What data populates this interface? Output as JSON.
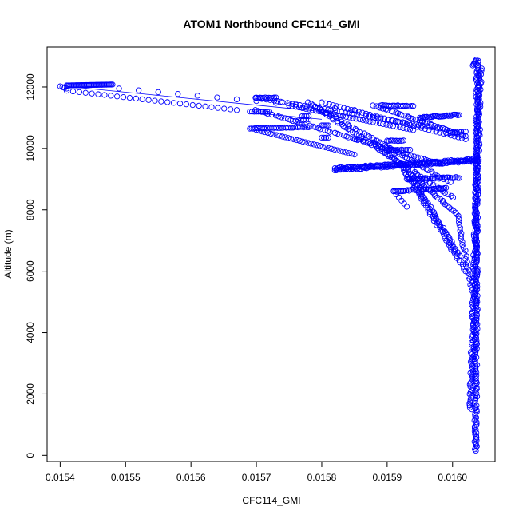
{
  "chart_data": {
    "type": "scatter",
    "title": "ATOM1 Northbound CFC114_GMI",
    "xlabel": "CFC114_GMI",
    "ylabel": "Altitude (m)",
    "xlim": [
      0.01538,
      0.016065
    ],
    "ylim": [
      -200,
      13300
    ],
    "grid": false,
    "legend": "none",
    "marker": "open-circle",
    "color": "#0000ff",
    "x_ticks": [
      {
        "value": 0.0154,
        "label": "0.0154"
      },
      {
        "value": 0.0155,
        "label": "0.0155"
      },
      {
        "value": 0.0156,
        "label": "0.0156"
      },
      {
        "value": 0.0157,
        "label": "0.0157"
      },
      {
        "value": 0.0158,
        "label": "0.0158"
      },
      {
        "value": 0.0159,
        "label": "0.0159"
      },
      {
        "value": 0.016,
        "label": "0.0160"
      }
    ],
    "y_ticks": [
      {
        "value": 0,
        "label": "0"
      },
      {
        "value": 2000,
        "label": "2000"
      },
      {
        "value": 4000,
        "label": "4000"
      },
      {
        "value": 6000,
        "label": "6000"
      },
      {
        "value": 8000,
        "label": "8000"
      },
      {
        "value": 10000,
        "label": "10000"
      },
      {
        "value": 12000,
        "label": "12000"
      }
    ],
    "segments": [
      {
        "x0": 0.016035,
        "y0": 150,
        "x1": 0.016038,
        "y1": 12850,
        "n": 260,
        "jitter": 2.2e-06,
        "jitter_y": 0
      },
      {
        "x0": 0.016028,
        "y0": 1500,
        "x1": 0.016042,
        "y1": 12600,
        "n": 180,
        "jitter": 2.8e-06,
        "jitter_y": 0
      },
      {
        "x0": 0.016036,
        "y0": 12880,
        "x1": 0.016031,
        "y1": 12700,
        "n": 6,
        "jitter": 0,
        "jitter_y": 0
      },
      {
        "x0": 0.016034,
        "y0": 5000,
        "x1": 0.016008,
        "y1": 7700,
        "n": 30,
        "jitter": 2e-06,
        "jitter_y": 0
      },
      {
        "x0": 0.01601,
        "y0": 6500,
        "x1": 0.01594,
        "y1": 9000,
        "n": 45,
        "jitter": 2e-06,
        "jitter_y": 0
      },
      {
        "x0": 0.01602,
        "y0": 6000,
        "x1": 0.01592,
        "y1": 9500,
        "n": 50,
        "jitter": 2e-06,
        "jitter_y": 0
      },
      {
        "x0": 0.01601,
        "y0": 7800,
        "x1": 0.01588,
        "y1": 10200,
        "n": 45,
        "jitter": 2e-06,
        "jitter_y": 0
      },
      {
        "x0": 0.016,
        "y0": 8400,
        "x1": 0.0158,
        "y1": 11200,
        "n": 55,
        "jitter": 2e-06,
        "jitter_y": 0
      },
      {
        "x0": 0.015995,
        "y0": 8900,
        "x1": 0.01578,
        "y1": 11500,
        "n": 55,
        "jitter": 2e-06,
        "jitter_y": 0
      },
      {
        "x0": 0.01598,
        "y0": 9500,
        "x1": 0.0157,
        "y1": 11250,
        "n": 60,
        "jitter": 2e-06,
        "jitter_y": 0
      },
      {
        "x0": 0.01602,
        "y0": 10400,
        "x1": 0.01588,
        "y1": 11400,
        "n": 40,
        "jitter": 2e-06,
        "jitter_y": 0
      },
      {
        "x0": 0.01598,
        "y0": 10650,
        "x1": 0.0157,
        "y1": 11650,
        "n": 55,
        "jitter": 2e-06,
        "jitter_y": 0
      },
      {
        "x0": 0.01593,
        "y0": 8100,
        "x1": 0.01591,
        "y1": 8600,
        "n": 6,
        "jitter": 0,
        "jitter_y": 0
      },
      {
        "x0": 0.01582,
        "y0": 9300,
        "x1": 0.01604,
        "y1": 9600,
        "n": 100,
        "jitter": 0,
        "jitter_y": 25
      },
      {
        "x0": 0.01582,
        "y0": 9350,
        "x1": 0.01604,
        "y1": 9650,
        "n": 90,
        "jitter": 0,
        "jitter_y": 25
      },
      {
        "x0": 0.01591,
        "y0": 8600,
        "x1": 0.01599,
        "y1": 8700,
        "n": 35,
        "jitter": 0,
        "jitter_y": 20
      },
      {
        "x0": 0.01593,
        "y0": 9000,
        "x1": 0.01601,
        "y1": 9050,
        "n": 35,
        "jitter": 0,
        "jitter_y": 20
      },
      {
        "x0": 0.01595,
        "y0": 11000,
        "x1": 0.01601,
        "y1": 11100,
        "n": 30,
        "jitter": 0,
        "jitter_y": 20
      },
      {
        "x0": 0.01589,
        "y0": 11400,
        "x1": 0.01594,
        "y1": 11380,
        "n": 20,
        "jitter": 0,
        "jitter_y": 15
      },
      {
        "x0": 0.0159,
        "y0": 10250,
        "x1": 0.015925,
        "y1": 10250,
        "n": 10,
        "jitter": 0,
        "jitter_y": 10
      },
      {
        "x0": 0.0159,
        "y0": 9950,
        "x1": 0.015935,
        "y1": 9950,
        "n": 12,
        "jitter": 0,
        "jitter_y": 10
      },
      {
        "x0": 0.01599,
        "y0": 10500,
        "x1": 0.01602,
        "y1": 10550,
        "n": 10,
        "jitter": 0,
        "jitter_y": 15
      },
      {
        "x0": 0.01569,
        "y0": 10650,
        "x1": 0.01578,
        "y1": 10700,
        "n": 35,
        "jitter": 0,
        "jitter_y": 10
      },
      {
        "x0": 0.0157,
        "y0": 11650,
        "x1": 0.01573,
        "y1": 11650,
        "n": 12,
        "jitter": 0,
        "jitter_y": 10
      },
      {
        "x0": 0.01569,
        "y0": 11200,
        "x1": 0.01572,
        "y1": 11200,
        "n": 10,
        "jitter": 0,
        "jitter_y": 10
      },
      {
        "x0": 0.0158,
        "y0": 10750,
        "x1": 0.01581,
        "y1": 10750,
        "n": 5,
        "jitter": 0,
        "jitter_y": 0
      },
      {
        "x0": 0.01577,
        "y0": 11050,
        "x1": 0.01578,
        "y1": 11050,
        "n": 4,
        "jitter": 0,
        "jitter_y": 0
      },
      {
        "x0": 0.01585,
        "y0": 10300,
        "x1": 0.01586,
        "y1": 10300,
        "n": 4,
        "jitter": 0,
        "jitter_y": 0
      },
      {
        "x0": 0.01576,
        "y0": 10900,
        "x1": 0.01578,
        "y1": 10950,
        "n": 6,
        "jitter": 0,
        "jitter_y": 0
      },
      {
        "x0": 0.0158,
        "y0": 10350,
        "x1": 0.01581,
        "y1": 10350,
        "n": 4,
        "jitter": 0,
        "jitter_y": 0
      },
      {
        "x0": 0.01567,
        "y0": 11250,
        "x1": 0.01541,
        "y1": 11880,
        "n": 28,
        "jitter": 0,
        "jitter_y": 0
      },
      {
        "x0": 0.0157,
        "y0": 10600,
        "x1": 0.01585,
        "y1": 9800,
        "n": 35,
        "jitter": 0,
        "jitter_y": 0
      },
      {
        "x0": 0.01575,
        "y0": 11400,
        "x1": 0.01594,
        "y1": 10600,
        "n": 38,
        "jitter": 0,
        "jitter_y": 0
      },
      {
        "x0": 0.0158,
        "y0": 11500,
        "x1": 0.01602,
        "y1": 10300,
        "n": 40,
        "jitter": 0,
        "jitter_y": 0
      },
      {
        "x0": 0.01541,
        "y0": 12050,
        "x1": 0.01548,
        "y1": 12080,
        "n": 40,
        "jitter": 0,
        "jitter_y": 0
      },
      {
        "x0": 0.0154,
        "y0": 12020,
        "x1": 0.01541,
        "y1": 11950,
        "n": 4,
        "jitter": 0,
        "jitter_y": 0
      },
      {
        "x0": 0.01549,
        "y0": 11950,
        "x1": 0.01585,
        "y1": 11250,
        "n": 13,
        "jitter": 0,
        "jitter_y": 0
      }
    ],
    "connecting_lines": [
      {
        "x0": 0.01541,
        "y0": 12020,
        "x1": 0.0158,
        "y1": 11200
      },
      {
        "x0": 0.0157,
        "y0": 11150,
        "x1": 0.0158,
        "y1": 10950
      }
    ]
  }
}
